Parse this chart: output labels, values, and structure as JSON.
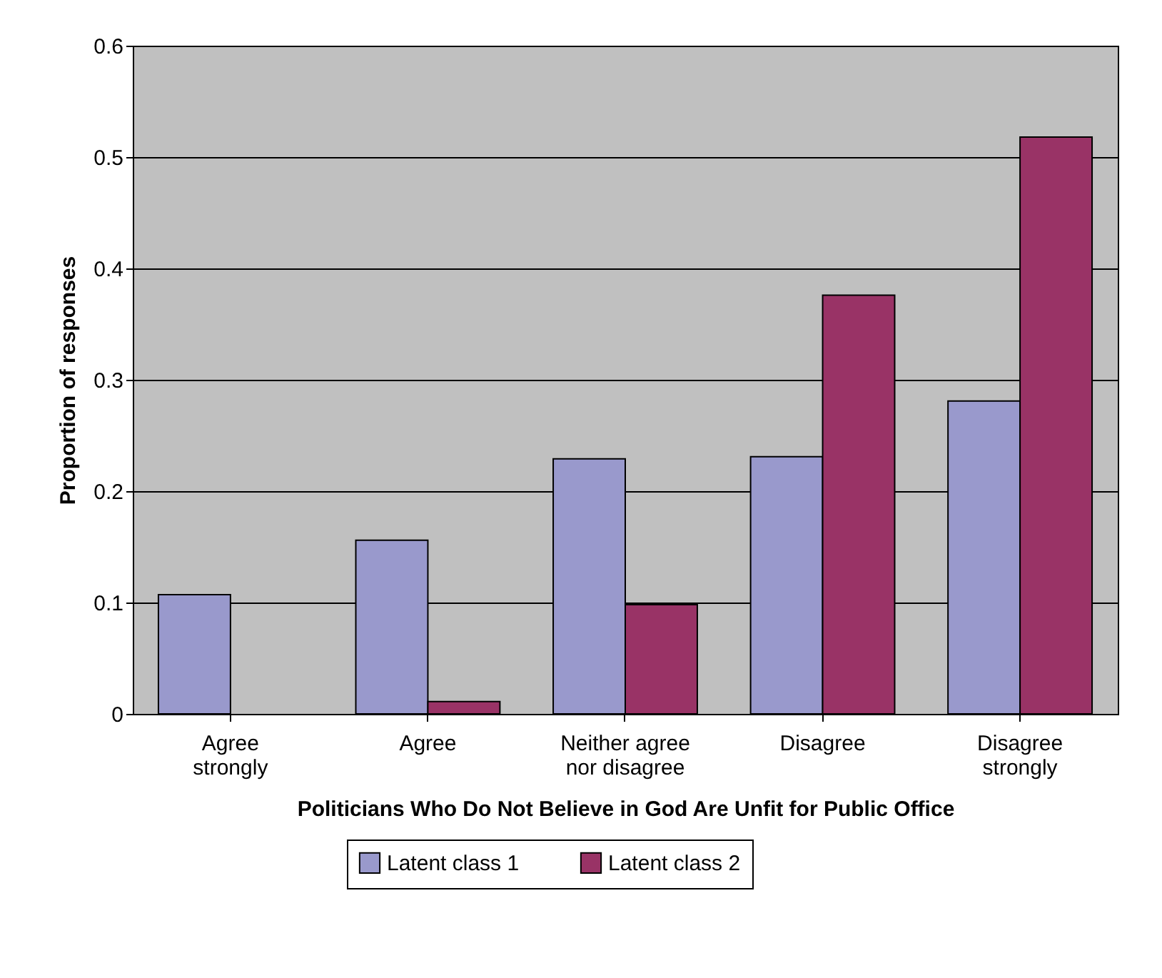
{
  "chart_data": {
    "type": "bar",
    "xlabel": "Politicians Who Do Not Believe in God Are Unfit for Public Office",
    "ylabel": "Proportion of responses",
    "categories": [
      "Agree strongly",
      "Agree",
      "Neither agree nor disagree",
      "Disagree",
      "Disagree strongly"
    ],
    "series": [
      {
        "name": "Latent class 1",
        "color": "#9999cc",
        "values": [
          0.107,
          0.156,
          0.229,
          0.231,
          0.281
        ]
      },
      {
        "name": "Latent class 2",
        "color": "#993366",
        "values": [
          null,
          0.011,
          0.098,
          0.376,
          0.518
        ]
      }
    ],
    "ylim": [
      0,
      0.6
    ],
    "yticks": [
      0,
      0.1,
      0.2,
      0.3,
      0.4,
      0.5,
      0.6
    ],
    "grid": "y",
    "legend": "bottom"
  }
}
